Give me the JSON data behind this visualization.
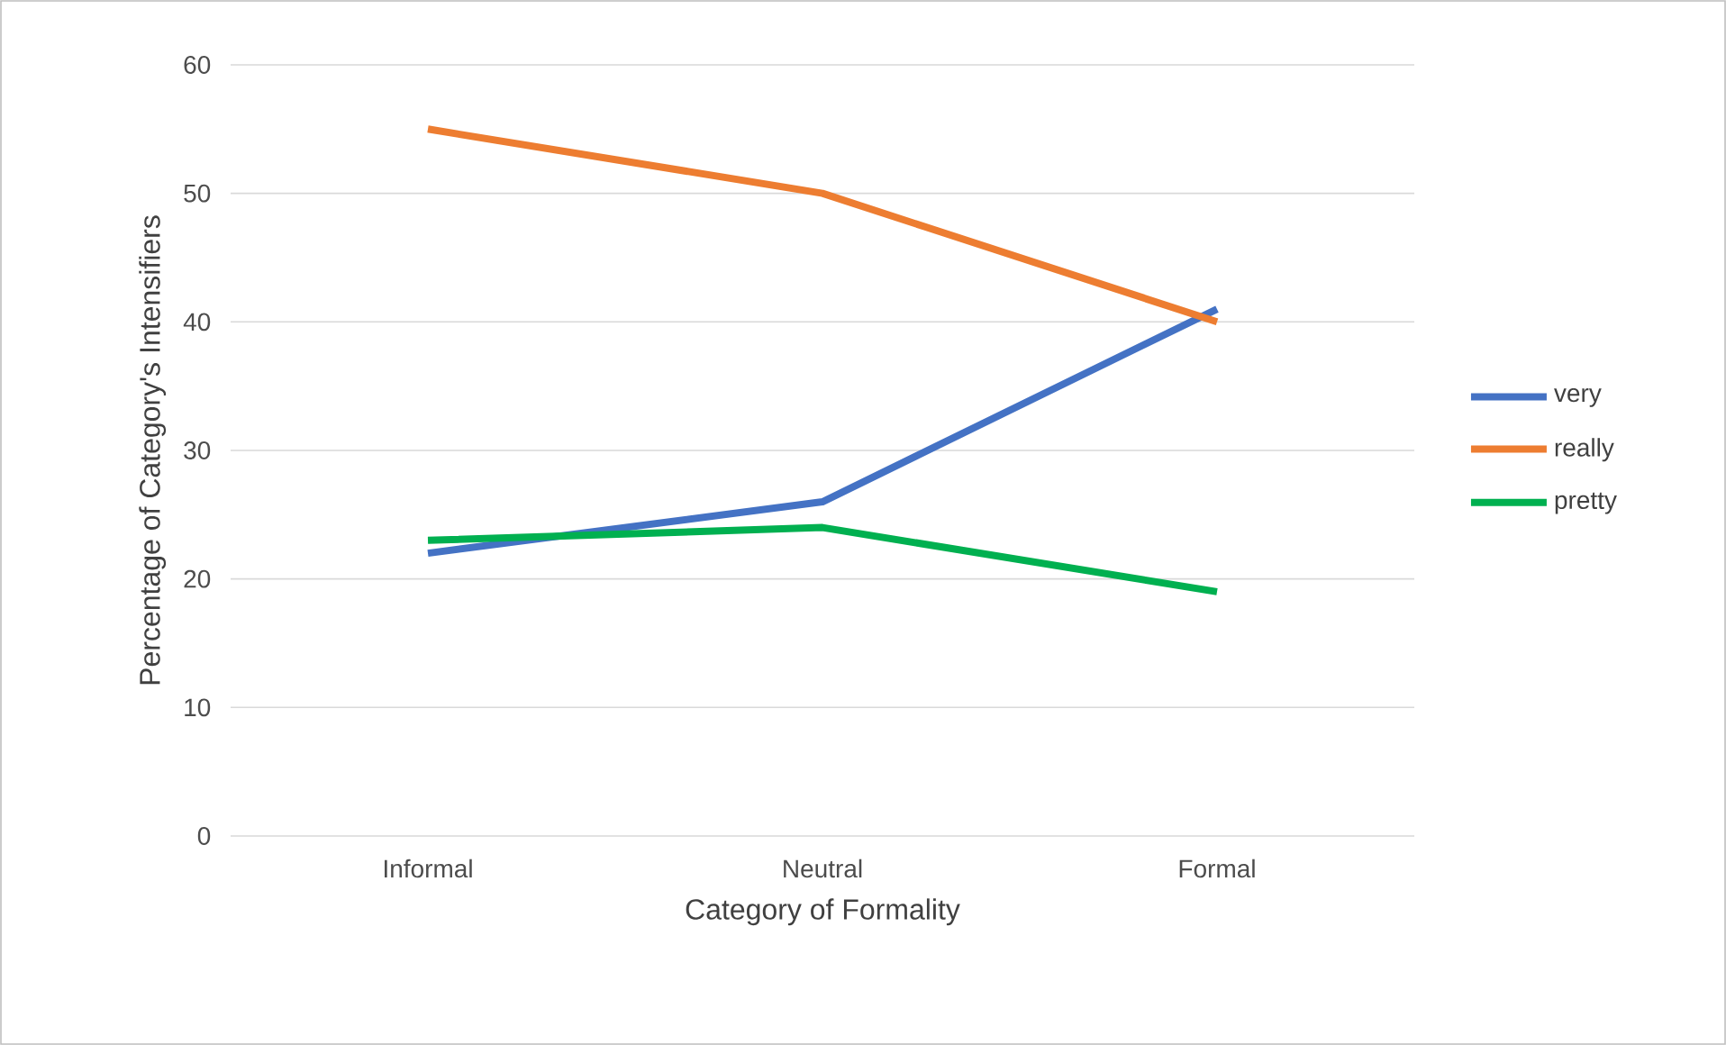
{
  "chart_data": {
    "type": "line",
    "xlabel": "Category of Formality",
    "ylabel": "Percentage of Category's Intensifiers",
    "categories": [
      "Informal",
      "Neutral",
      "Formal"
    ],
    "series": [
      {
        "name": "very",
        "color": "#4472c4",
        "values": [
          22,
          26,
          41
        ]
      },
      {
        "name": "really",
        "color": "#ed7d31",
        "values": [
          55,
          50,
          40
        ]
      },
      {
        "name": "pretty",
        "color": "#00b050",
        "values": [
          23,
          24,
          19
        ]
      }
    ],
    "ylim": [
      0,
      60
    ],
    "yticks": [
      0,
      10,
      20,
      30,
      40,
      50,
      60
    ],
    "grid": "y",
    "legend": "right",
    "marker": "none",
    "line_style": "solid"
  }
}
